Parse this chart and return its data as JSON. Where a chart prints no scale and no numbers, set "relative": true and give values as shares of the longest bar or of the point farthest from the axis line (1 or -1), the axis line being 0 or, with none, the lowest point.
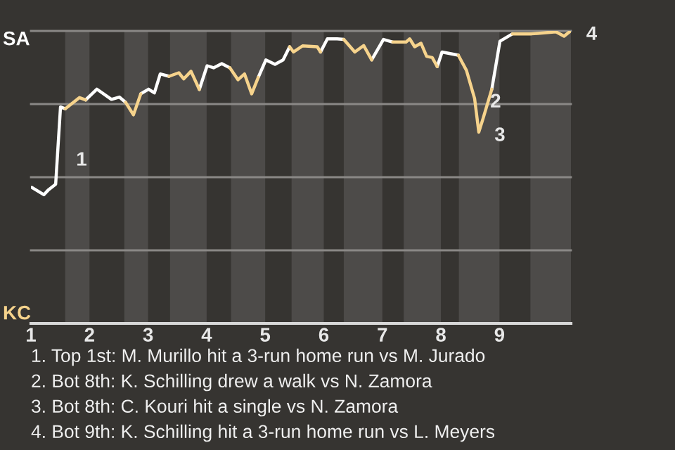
{
  "chart_data": {
    "type": "line",
    "relative": true,
    "series": [
      {
        "color": "#ffffff",
        "x": [
          1.017,
          1.22,
          1.3,
          1.422,
          1.505,
          1.585
        ],
        "values": [
          0.465,
          0.44,
          0.457,
          0.476,
          0.74,
          0.734
        ]
      },
      {
        "color": "#ffffff",
        "x": [
          1.934,
          2.125,
          2.375,
          2.509,
          2.616
        ],
        "values": [
          0.764,
          0.801,
          0.766,
          0.774,
          0.756
        ]
      },
      {
        "color": "#ffffff",
        "x": [
          2.875,
          3.008,
          3.108,
          3.208,
          3.358
        ],
        "values": [
          0.785,
          0.801,
          0.788,
          0.853,
          0.845
        ]
      },
      {
        "color": "#ffffff",
        "x": [
          3.875,
          4.008,
          4.119,
          4.258,
          4.397
        ],
        "values": [
          0.8,
          0.881,
          0.874,
          0.888,
          0.874
        ]
      },
      {
        "color": "#ffffff",
        "x": [
          4.881,
          5.012,
          5.167,
          5.305,
          5.417
        ],
        "values": [
          0.841,
          0.901,
          0.886,
          0.901,
          0.946
        ]
      },
      {
        "color": "#ffffff",
        "x": [
          5.945,
          6.061,
          6.227,
          6.341
        ],
        "values": [
          0.928,
          0.973,
          0.973,
          0.971
        ]
      },
      {
        "color": "#ffffff",
        "x": [
          6.818,
          7.019,
          7.179
        ],
        "values": [
          0.901,
          0.971,
          0.962
        ]
      },
      {
        "color": "#ffffff",
        "x": [
          7.937,
          8.019,
          8.297
        ],
        "values": [
          0.878,
          0.928,
          0.917
        ]
      },
      {
        "color": "#ffffff",
        "x": [
          8.869,
          9.008,
          9.222
        ],
        "values": [
          0.801,
          0.965,
          0.99
        ]
      },
      {
        "color": "#f6d38c",
        "x": [
          1.585,
          1.829,
          1.934
        ],
        "values": [
          0.734,
          0.772,
          0.764
        ]
      },
      {
        "color": "#f6d38c",
        "x": [
          2.616,
          2.75,
          2.875
        ],
        "values": [
          0.756,
          0.713,
          0.785
        ]
      },
      {
        "color": "#f6d38c",
        "x": [
          3.358,
          3.525,
          3.608,
          3.733,
          3.875
        ],
        "values": [
          0.845,
          0.857,
          0.836,
          0.862,
          0.8
        ]
      },
      {
        "color": "#f6d38c",
        "x": [
          4.397,
          4.536,
          4.647,
          4.769,
          4.881
        ],
        "values": [
          0.874,
          0.833,
          0.853,
          0.785,
          0.841
        ]
      },
      {
        "color": "#f6d38c",
        "x": [
          5.417,
          5.483,
          5.638,
          5.888,
          5.945
        ],
        "values": [
          0.946,
          0.928,
          0.949,
          0.946,
          0.928
        ]
      },
      {
        "color": "#f6d38c",
        "x": [
          6.341,
          6.53,
          6.682,
          6.818
        ],
        "values": [
          0.971,
          0.928,
          0.95,
          0.901
        ]
      },
      {
        "color": "#f6d38c",
        "x": [
          7.179,
          7.404,
          7.467,
          7.552,
          7.66,
          7.756,
          7.852,
          7.937
        ],
        "values": [
          0.962,
          0.962,
          0.973,
          0.946,
          0.958,
          0.913,
          0.909,
          0.878
        ]
      },
      {
        "color": "#f6d38c",
        "x": [
          8.297,
          8.436,
          8.575,
          8.647,
          8.714,
          8.869
        ],
        "values": [
          0.917,
          0.865,
          0.769,
          0.654,
          0.697,
          0.801
        ]
      },
      {
        "color": "#f6d38c",
        "x": [
          9.222,
          9.547,
          9.964,
          10.103,
          10.214
        ],
        "values": [
          0.99,
          0.99,
          0.997,
          0.982,
          1
        ]
      }
    ],
    "xlim": [
      1,
      10.22
    ],
    "xticks": [
      1,
      2,
      3,
      4,
      5,
      6,
      7,
      8,
      9
    ],
    "ref_lines": [
      {
        "axis": "y",
        "value": 1,
        "color": "#8a8886"
      },
      {
        "axis": "y",
        "value": 0.75,
        "color": "#8a8886"
      },
      {
        "axis": "y",
        "value": 0.5,
        "color": "#8a8886"
      },
      {
        "axis": "y",
        "value": 0.25,
        "color": "#8a8886"
      }
    ],
    "bands": [
      {
        "axis": "x",
        "from": 1.585,
        "to": 2,
        "color": "#4d4b49"
      },
      {
        "axis": "x",
        "from": 2.594,
        "to": 3,
        "color": "#4d4b49"
      },
      {
        "axis": "x",
        "from": 3.375,
        "to": 4,
        "color": "#4d4b49"
      },
      {
        "axis": "x",
        "from": 4.417,
        "to": 5,
        "color": "#4d4b49"
      },
      {
        "axis": "x",
        "from": 5.45,
        "to": 6,
        "color": "#4d4b49"
      },
      {
        "axis": "x",
        "from": 6.341,
        "to": 7,
        "color": "#4d4b49"
      },
      {
        "axis": "x",
        "from": 7.365,
        "to": 8,
        "color": "#4d4b49"
      },
      {
        "axis": "x",
        "from": 8.306,
        "to": 9,
        "color": "#4d4b49"
      },
      {
        "axis": "x",
        "from": 9.528,
        "to": 10.22,
        "color": "#4d4b49"
      }
    ],
    "annotations": [
      "SA",
      "KC",
      {
        "text": "1",
        "x": 1.505,
        "y": 0.57
      },
      {
        "text": "2",
        "x": 8.575,
        "y": 0.769
      },
      {
        "text": "3",
        "x": 8.647,
        "y": 0.654
      },
      {
        "text": "4",
        "x": 10.214,
        "y": 1
      },
      "1. Top 1st: M. Murillo hit a 3-run home run vs M. Jurado",
      "2. Bot 8th: K. Schilling drew a walk vs N. Zamora",
      "3. Bot 8th: C. Kouri hit a single vs N. Zamora",
      "4. Bot 9th: K. Schilling hit a 3-run home run vs L. Meyers"
    ]
  }
}
